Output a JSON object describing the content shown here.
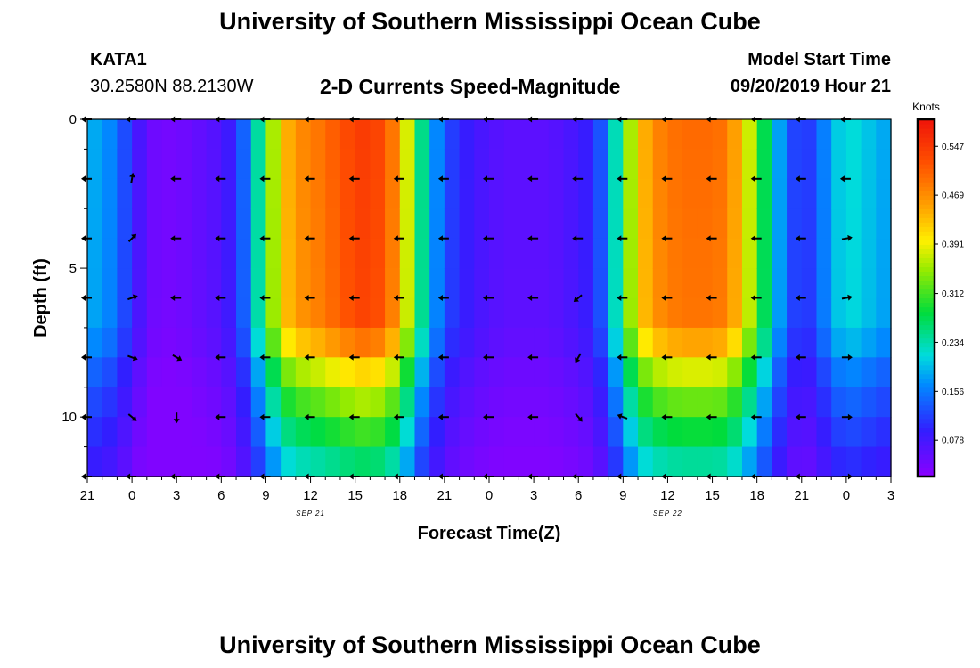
{
  "header": {
    "top_title": "University of Southern Mississippi Ocean Cube",
    "station_id": "KATA1",
    "coordinates": "30.2580N 88.2130W",
    "plot_title": "2-D Currents Speed-Magnitude",
    "model_start_label": "Model Start Time",
    "model_start_value": "09/20/2019 Hour 21",
    "bottom_title": "University of Southern Mississippi Ocean Cube"
  },
  "chart_data": {
    "type": "heatmap",
    "title": "2-D Currents Speed-Magnitude",
    "xlabel": "Forecast Time(Z)",
    "ylabel": "Depth (ft)",
    "x_tick_labels": [
      "21",
      "0",
      "3",
      "6",
      "9",
      "12",
      "15",
      "18",
      "21",
      "0",
      "3",
      "6",
      "9",
      "12",
      "15",
      "18",
      "21",
      "0",
      "3"
    ],
    "x_hours": [
      0,
      3,
      6,
      9,
      12,
      15,
      18,
      21,
      24,
      27,
      30,
      33,
      36,
      39,
      42,
      45,
      48,
      51,
      54
    ],
    "date_labels": [
      {
        "text": "SEP 21",
        "hour": 15
      },
      {
        "text": "SEP 22",
        "hour": 39
      }
    ],
    "x_range_hours": [
      0,
      54
    ],
    "y_ticks": [
      0,
      5,
      10
    ],
    "y_tick_labels": [
      "0",
      "5",
      "10"
    ],
    "ylim": [
      0,
      12
    ],
    "y_inverted": true,
    "colorbar": {
      "unit": "Knots",
      "tick_values": [
        0.078,
        0.156,
        0.234,
        0.312,
        0.391,
        0.469,
        0.547
      ],
      "tick_labels": [
        "0.078",
        "0.156",
        "0.234",
        "0.312",
        "0.391",
        "0.469",
        "0.547"
      ],
      "range": [
        0.02,
        0.59
      ]
    },
    "profile_hours": [
      0,
      1,
      2,
      3,
      4,
      5,
      6,
      7,
      8,
      9,
      10,
      11,
      12,
      13,
      14,
      15,
      16,
      17,
      18,
      19,
      20,
      21,
      22,
      23,
      24,
      25,
      26,
      27,
      28,
      29,
      30,
      31,
      32,
      33,
      34,
      35,
      36,
      37,
      38,
      39,
      40,
      41,
      42,
      43,
      44,
      45,
      46,
      47,
      48,
      49,
      50,
      51,
      52,
      53,
      54
    ],
    "profile_surface_speed": [
      0.19,
      0.18,
      0.15,
      0.1,
      0.05,
      0.04,
      0.04,
      0.05,
      0.06,
      0.07,
      0.1,
      0.18,
      0.3,
      0.42,
      0.47,
      0.48,
      0.5,
      0.52,
      0.54,
      0.55,
      0.52,
      0.46,
      0.3,
      0.2,
      0.13,
      0.1,
      0.08,
      0.07,
      0.06,
      0.06,
      0.06,
      0.06,
      0.07,
      0.08,
      0.1,
      0.16,
      0.3,
      0.42,
      0.47,
      0.49,
      0.5,
      0.5,
      0.5,
      0.49,
      0.42,
      0.33,
      0.22,
      0.14,
      0.1,
      0.13,
      0.19,
      0.22,
      0.21,
      0.19,
      0.18
    ],
    "depth_profile_factors": [
      {
        "depth": 0,
        "factor": 1.0
      },
      {
        "depth": 7,
        "factor": 0.98
      },
      {
        "depth": 8,
        "factor": 0.82
      },
      {
        "depth": 9,
        "factor": 0.7
      },
      {
        "depth": 10,
        "factor": 0.62
      },
      {
        "depth": 11,
        "factor": 0.52
      },
      {
        "depth": 12,
        "factor": 0.45
      }
    ],
    "arrow_hours": [
      0,
      3,
      6,
      9,
      12,
      15,
      18,
      21,
      24,
      27,
      30,
      33,
      36,
      39,
      42,
      45,
      48,
      51
    ],
    "arrow_depths": [
      0,
      2,
      4,
      6,
      8,
      10,
      12
    ],
    "arrow_direction_deg": 180,
    "arrow_exceptions": [
      {
        "hour": 3,
        "depth": 2,
        "direction_deg": 80
      },
      {
        "hour": 3,
        "depth": 4,
        "direction_deg": 45
      },
      {
        "hour": 3,
        "depth": 6,
        "direction_deg": 20
      },
      {
        "hour": 3,
        "depth": 8,
        "direction_deg": 340
      },
      {
        "hour": 3,
        "depth": 10,
        "direction_deg": 320
      },
      {
        "hour": 6,
        "depth": 8,
        "direction_deg": 330
      },
      {
        "hour": 6,
        "depth": 10,
        "direction_deg": 270
      },
      {
        "hour": 33,
        "depth": 6,
        "direction_deg": 220
      },
      {
        "hour": 33,
        "depth": 8,
        "direction_deg": 240
      },
      {
        "hour": 33,
        "depth": 10,
        "direction_deg": 310
      },
      {
        "hour": 36,
        "depth": 10,
        "direction_deg": 160
      },
      {
        "hour": 51,
        "depth": 4,
        "direction_deg": 10
      },
      {
        "hour": 51,
        "depth": 6,
        "direction_deg": 10
      },
      {
        "hour": 51,
        "depth": 8,
        "direction_deg": 0
      },
      {
        "hour": 51,
        "depth": 10,
        "direction_deg": 0
      },
      {
        "hour": 51,
        "depth": 12,
        "direction_deg": 0
      }
    ]
  }
}
